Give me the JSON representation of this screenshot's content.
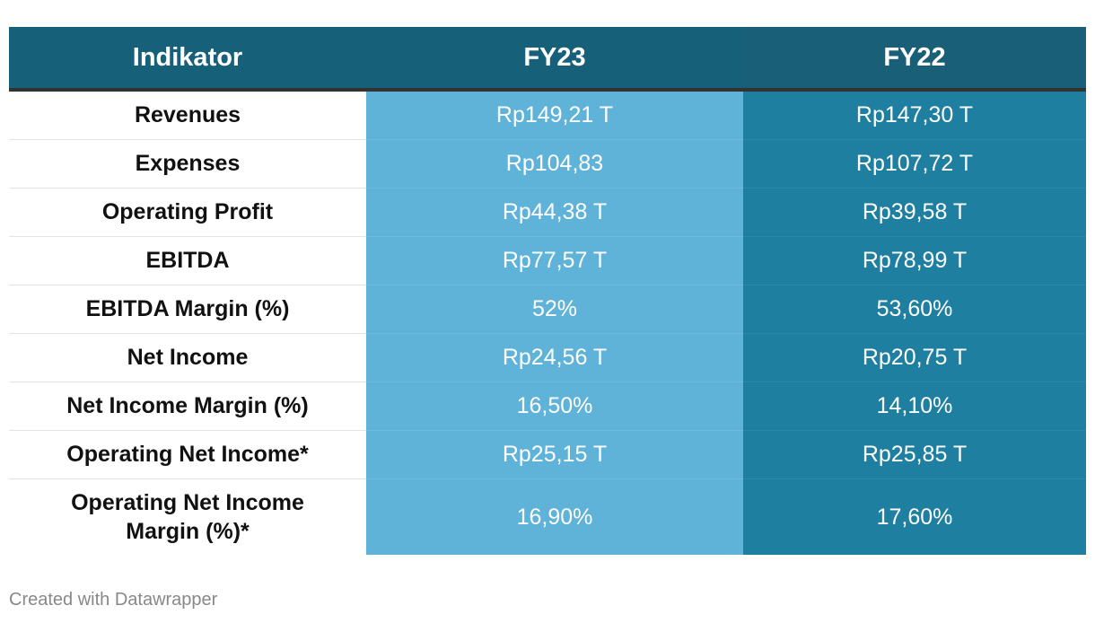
{
  "chart_data": {
    "type": "table",
    "columns": [
      "Indikator",
      "FY23",
      "FY22"
    ],
    "rows": [
      {
        "indikator": "Revenues",
        "fy23": "Rp149,21 T",
        "fy22": "Rp147,30 T"
      },
      {
        "indikator": "Expenses",
        "fy23": "Rp104,83",
        "fy22": "Rp107,72 T"
      },
      {
        "indikator": "Operating Profit",
        "fy23": "Rp44,38 T",
        "fy22": "Rp39,58 T"
      },
      {
        "indikator": "EBITDA",
        "fy23": "Rp77,57 T",
        "fy22": "Rp78,99 T"
      },
      {
        "indikator": "EBITDA Margin (%)",
        "fy23": "52%",
        "fy22": "53,60%"
      },
      {
        "indikator": "Net Income",
        "fy23": "Rp24,56 T",
        "fy22": "Rp20,75 T"
      },
      {
        "indikator": "Net Income Margin (%)",
        "fy23": "16,50%",
        "fy22": "14,10%"
      },
      {
        "indikator": "Operating Net Income*",
        "fy23": "Rp25,15 T",
        "fy22": "Rp25,85 T"
      },
      {
        "indikator": "Operating Net Income Margin (%)*",
        "fy23": "16,90%",
        "fy22": "17,60%"
      }
    ]
  },
  "colors": {
    "header_bg": "#17607a",
    "fy23_bg": "#5fb3d8",
    "fy22_bg": "#1f7fa0"
  },
  "footer": {
    "credit": "Created with Datawrapper"
  }
}
